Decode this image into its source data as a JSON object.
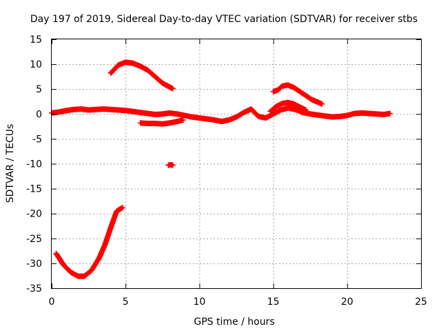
{
  "chart_data": {
    "type": "scatter",
    "title": "Day 197 of 2019, Sidereal Day-to-day VTEC variation (SDTVAR) for receiver stbs",
    "xlabel": "GPS time / hours",
    "ylabel": "SDTVAR / TECUs",
    "xlim": [
      0,
      25
    ],
    "ylim": [
      -35,
      15
    ],
    "x_ticks": [
      0,
      5,
      10,
      15,
      20,
      25
    ],
    "y_ticks": [
      -35,
      -30,
      -25,
      -20,
      -15,
      -10,
      -5,
      0,
      5,
      10,
      15
    ],
    "grid": true,
    "marker": "plus",
    "series_color": "#ff0000",
    "series": [
      {
        "name": "low-arc",
        "x": [
          0.3,
          0.8,
          1.3,
          1.8,
          2.2,
          2.7,
          3.2,
          3.6,
          4.0,
          4.4,
          4.8
        ],
        "y": [
          -28,
          -30.3,
          -31.8,
          -32.6,
          -32.6,
          -31.4,
          -29,
          -26.3,
          -22.8,
          -19.5,
          -18.8
        ]
      },
      {
        "name": "high-arc",
        "x": [
          4.0,
          4.5,
          5.0,
          5.5,
          6.0,
          6.5,
          7.0,
          7.5,
          8.0,
          8.2
        ],
        "y": [
          8.2,
          9.8,
          10.4,
          10.2,
          9.6,
          8.8,
          7.5,
          6.2,
          5.4,
          5.1
        ]
      },
      {
        "name": "baseline",
        "x": [
          0.0,
          0.5,
          1.0,
          1.5,
          2.0,
          2.5,
          3.0,
          3.5,
          4.0,
          4.5,
          5.0,
          5.5,
          6.0,
          6.5,
          7.0,
          7.5,
          8.0,
          8.5,
          9.0,
          9.5,
          10.0,
          10.5,
          11.0,
          11.5,
          12.0,
          12.5,
          13.0,
          13.5,
          14.0,
          14.5,
          15.0,
          15.5,
          16.0,
          16.5,
          17.0,
          17.5,
          18.0,
          18.5,
          19.0,
          19.5,
          20.0,
          20.5,
          21.0,
          21.5,
          22.0,
          22.5,
          22.9
        ],
        "y": [
          0.2,
          0.4,
          0.7,
          0.9,
          1.0,
          0.8,
          0.9,
          1.0,
          0.9,
          0.8,
          0.7,
          0.5,
          0.3,
          0.1,
          -0.1,
          0.0,
          0.2,
          0.0,
          -0.3,
          -0.6,
          -0.8,
          -1.0,
          -1.2,
          -1.5,
          -1.2,
          -0.6,
          0.3,
          1.0,
          -0.5,
          -0.8,
          0.0,
          0.8,
          1.2,
          0.9,
          0.3,
          0.0,
          -0.2,
          -0.4,
          -0.6,
          -0.5,
          -0.3,
          0.1,
          0.2,
          0.1,
          0.0,
          -0.1,
          0.1
        ]
      },
      {
        "name": "short-segment",
        "x": [
          6.0,
          6.5,
          7.0,
          7.5,
          8.0,
          8.5,
          8.9
        ],
        "y": [
          -1.8,
          -1.9,
          -1.9,
          -2.0,
          -1.8,
          -1.5,
          -1.2
        ]
      },
      {
        "name": "afternoon-arc",
        "x": [
          15.0,
          15.3,
          15.6,
          16.0,
          16.4,
          16.8,
          17.2,
          17.6,
          18.0,
          18.3
        ],
        "y": [
          4.5,
          4.8,
          5.6,
          5.8,
          5.3,
          4.5,
          3.7,
          2.9,
          2.4,
          2.0
        ]
      },
      {
        "name": "secondary-arc",
        "x": [
          14.8,
          15.2,
          15.6,
          16.0,
          16.4,
          16.8,
          17.2
        ],
        "y": [
          0.5,
          1.5,
          2.1,
          2.3,
          2.0,
          1.4,
          0.8
        ]
      },
      {
        "name": "isolated",
        "x": [
          7.9,
          8.0,
          8.1,
          8.2
        ],
        "y": [
          -10.3,
          -10.2,
          -10.2,
          -10.3
        ]
      }
    ]
  }
}
